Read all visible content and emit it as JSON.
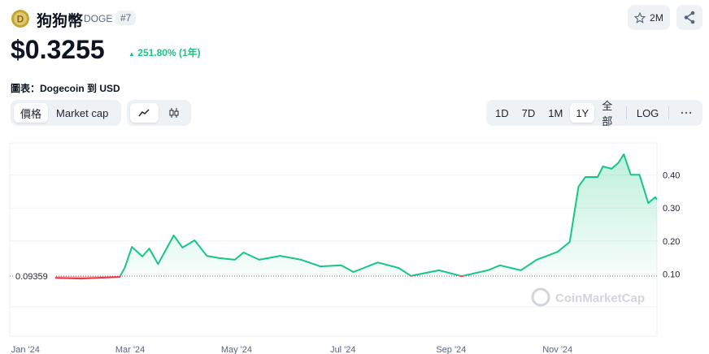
{
  "header": {
    "name": "狗狗幣",
    "symbol": "DOGE",
    "rank": "#7",
    "watchlist": "2M"
  },
  "price": {
    "value": "$0.3255",
    "change": "251.80% (1年)"
  },
  "chart_label": "圖表：Dogecoin 到 USD",
  "tabs": [
    "價格",
    "Market cap"
  ],
  "ranges": [
    "1D",
    "7D",
    "1M",
    "1Y",
    "全部"
  ],
  "active_range": "1Y",
  "log": "LOG",
  "watermark": "CoinMarketCap",
  "chart_data": {
    "type": "line",
    "x": [
      17,
      32,
      41,
      54,
      57,
      61,
      67,
      71,
      76,
      85,
      90,
      97,
      104,
      111,
      120,
      125,
      134,
      146,
      158,
      169,
      181,
      188,
      202,
      214,
      221,
      237,
      246,
      250,
      265,
      272,
      284,
      293,
      305,
      312,
      317,
      321,
      328,
      331,
      336,
      340,
      343,
      347,
      352,
      357,
      361,
      362
    ],
    "values": [
      0.088,
      0.086,
      0.088,
      0.091,
      0.12,
      0.182,
      0.153,
      0.177,
      0.13,
      0.217,
      0.18,
      0.202,
      0.155,
      0.148,
      0.143,
      0.165,
      0.143,
      0.155,
      0.143,
      0.123,
      0.126,
      0.106,
      0.135,
      0.118,
      0.094,
      0.111,
      0.099,
      0.093,
      0.111,
      0.126,
      0.111,
      0.143,
      0.167,
      0.197,
      0.365,
      0.394,
      0.394,
      0.426,
      0.419,
      0.438,
      0.463,
      0.401,
      0.401,
      0.315,
      0.333,
      0.3255
    ],
    "color_up": "#16c784",
    "color_down": "#ea3943",
    "baseline": 0.09359,
    "xlim": [
      -9,
      362
    ],
    "xticks": [
      {
        "value": 0,
        "label": "Jan '24"
      },
      {
        "value": 60,
        "label": "Mar '24"
      },
      {
        "value": 121,
        "label": "May '24"
      },
      {
        "value": 182,
        "label": "Jul '24"
      },
      {
        "value": 244,
        "label": "Sep '24"
      },
      {
        "value": 305,
        "label": "Nov '24"
      }
    ],
    "ylim": [
      0,
      0.5
    ],
    "yticks": [
      {
        "value": 0.1,
        "label": "0.10"
      },
      {
        "value": 0.2,
        "label": "0.20"
      },
      {
        "value": 0.3,
        "label": "0.30"
      },
      {
        "value": 0.4,
        "label": "0.40"
      }
    ],
    "grid": true
  }
}
